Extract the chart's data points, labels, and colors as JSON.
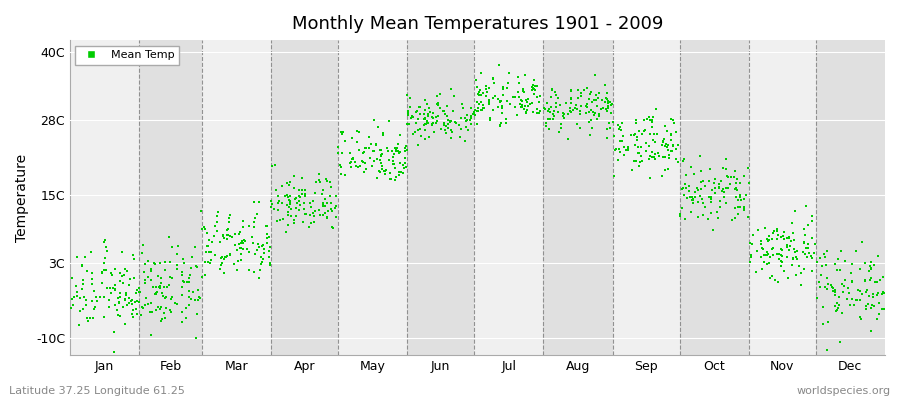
{
  "title": "Monthly Mean Temperatures 1901 - 2009",
  "ylabel": "Temperature",
  "ytick_labels": [
    "-10C",
    "3C",
    "15C",
    "28C",
    "40C"
  ],
  "ytick_values": [
    -10,
    3,
    15,
    28,
    40
  ],
  "ylim": [
    -13,
    42
  ],
  "months": [
    "Jan",
    "Feb",
    "Mar",
    "Apr",
    "May",
    "Jun",
    "Jul",
    "Aug",
    "Sep",
    "Oct",
    "Nov",
    "Dec"
  ],
  "month_days": [
    31,
    28,
    31,
    30,
    31,
    30,
    31,
    31,
    30,
    31,
    30,
    31
  ],
  "dot_color": "#00CC00",
  "dot_size": 3,
  "background_color": "#FFFFFF",
  "plot_bg_light": "#F0F0F0",
  "plot_bg_dark": "#E0E0E0",
  "legend_label": "Mean Temp",
  "footer_left": "Latitude 37.25 Longitude 61.25",
  "footer_right": "worldspecies.org",
  "mean_temps": [
    -2.0,
    -1.5,
    6.0,
    13.5,
    22.0,
    28.5,
    31.5,
    30.0,
    24.0,
    15.0,
    5.5,
    -1.0
  ],
  "std_temps": [
    3.5,
    3.5,
    3.0,
    2.5,
    2.5,
    2.0,
    1.8,
    2.0,
    2.5,
    3.0,
    3.0,
    3.5
  ],
  "n_years": 109,
  "title_fontsize": 13,
  "axis_fontsize": 9,
  "footer_fontsize": 8
}
